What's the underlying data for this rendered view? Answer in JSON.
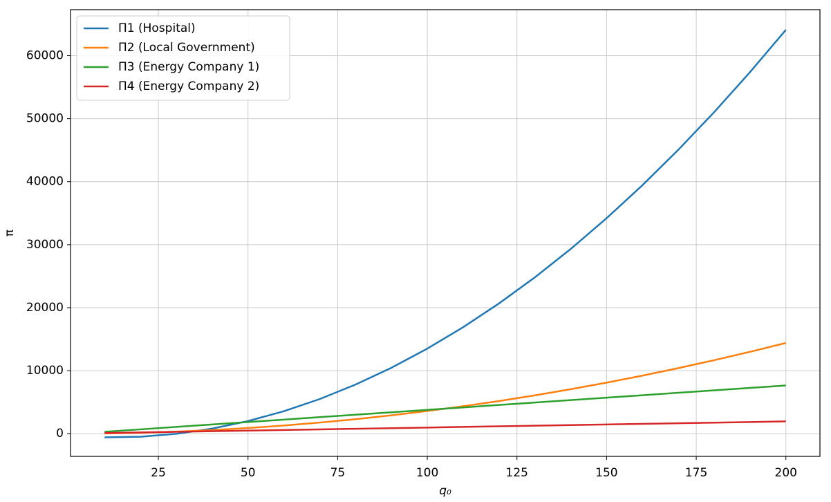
{
  "chart_data": {
    "type": "line",
    "x_label": "q₀",
    "y_label": "π",
    "x": [
      10,
      20,
      30,
      40,
      50,
      60,
      70,
      80,
      90,
      100,
      110,
      120,
      130,
      140,
      150,
      160,
      170,
      180,
      190,
      200
    ],
    "series": [
      {
        "name": "Π1 (Hospital)",
        "color": "#1f77b4",
        "values": [
          -576,
          -484,
          -24,
          804,
          2000,
          3564,
          5496,
          7796,
          10464,
          13500,
          16904,
          20676,
          24816,
          29324,
          34200,
          39444,
          45056,
          51036,
          57384,
          64100
        ]
      },
      {
        "name": "Π2 (Local Government)",
        "color": "#ff7f0e",
        "values": [
          36,
          144,
          324,
          576,
          900,
          1296,
          1764,
          2304,
          2916,
          3600,
          4356,
          5184,
          6084,
          7056,
          8100,
          9216,
          10404,
          11664,
          12996,
          14400
        ]
      },
      {
        "name": "Π3 (Energy Company 1)",
        "color": "#2ca02c",
        "values": [
          300,
          687,
          1074,
          1461,
          1848,
          2235,
          2622,
          3009,
          3396,
          3783,
          4170,
          4557,
          4944,
          5331,
          5718,
          6105,
          6492,
          6879,
          7266,
          7653
        ]
      },
      {
        "name": "Π4 (Energy Company 2)",
        "color": "#d62728",
        "values": [
          98,
          195,
          293,
          390,
          488,
          585,
          683,
          780,
          878,
          975,
          1073,
          1170,
          1268,
          1365,
          1463,
          1560,
          1658,
          1755,
          1853,
          1950
        ]
      }
    ],
    "xlim": [
      0.5,
      209.5
    ],
    "ylim": [
      -3600,
      67300
    ],
    "xticks": [
      25,
      50,
      75,
      100,
      125,
      150,
      175,
      200
    ],
    "yticks": [
      0,
      10000,
      20000,
      30000,
      40000,
      50000,
      60000
    ],
    "grid": true,
    "legend": "upper left"
  }
}
